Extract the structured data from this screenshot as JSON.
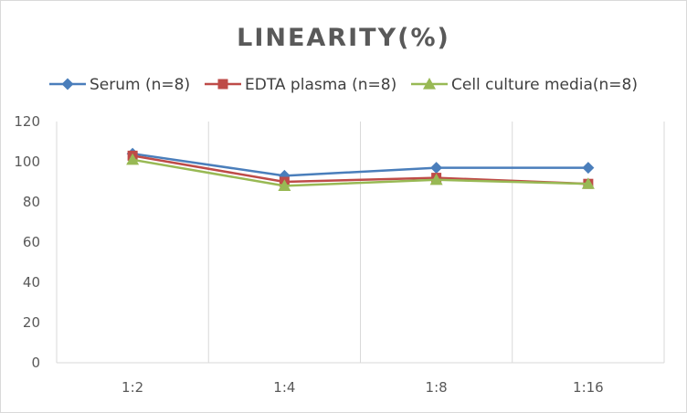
{
  "chart_data": {
    "type": "line",
    "title": "LINEARITY(%)",
    "xlabel": "",
    "ylabel": "",
    "categories": [
      "1:2",
      "1:4",
      "1:8",
      "1:16"
    ],
    "ylim": [
      0,
      120
    ],
    "yticks": [
      0,
      20,
      40,
      60,
      80,
      100,
      120
    ],
    "grid": "vertical",
    "legend_position": "top",
    "series": [
      {
        "name": "Serum (n=8)",
        "values": [
          104,
          93,
          97,
          97
        ],
        "color": "#4a7ebb",
        "marker": "diamond"
      },
      {
        "name": "EDTA plasma (n=8)",
        "values": [
          103,
          90,
          92,
          89
        ],
        "color": "#be4b48",
        "marker": "square"
      },
      {
        "name": "Cell culture media(n=8)",
        "values": [
          101,
          88,
          91,
          89
        ],
        "color": "#98b954",
        "marker": "triangle"
      }
    ]
  }
}
